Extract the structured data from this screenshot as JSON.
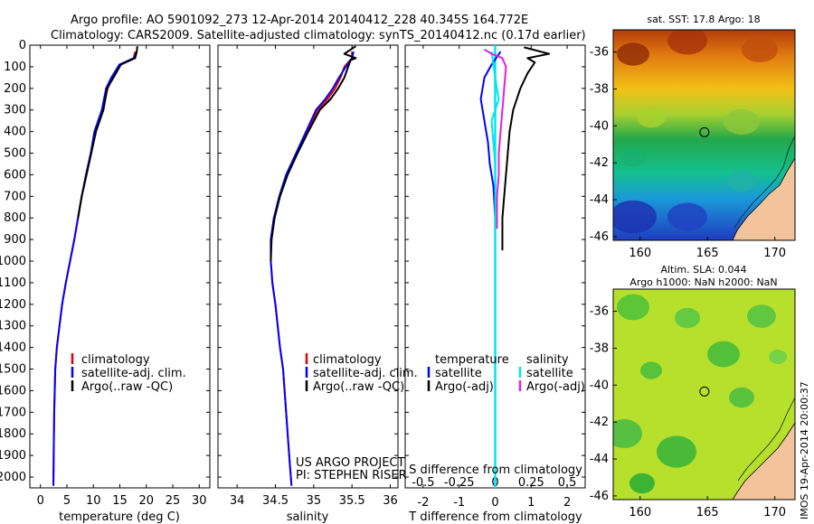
{
  "header": {
    "line1": "Argo profile: AO 5901092_273 12-Apr-2014 20140412_228 40.345S 164.772E",
    "line2": "Climatology: CARS2009. Satellite-adjusted climatology: synTS_20140412.nc (0.17d earlier)"
  },
  "colors": {
    "climatology": "#e00000",
    "satellite": "#0000ff",
    "argo": "#000000",
    "sal_satellite": "#00e5ee",
    "sal_argo": "#e020e0"
  },
  "chart_data": [
    {
      "id": "temperature",
      "type": "line",
      "xlabel": "temperature (deg C)",
      "ylabel": "",
      "xlim": [
        -2,
        32
      ],
      "ylim": [
        0,
        2050
      ],
      "y_reversed": true,
      "xticks": [
        0,
        5,
        10,
        15,
        20,
        25,
        30
      ],
      "yticks": [
        0,
        100,
        200,
        300,
        400,
        500,
        600,
        700,
        800,
        900,
        1000,
        1100,
        1200,
        1300,
        1400,
        1500,
        1600,
        1700,
        1800,
        1900,
        2000
      ],
      "legend": [
        "climatology",
        "satellite-adj. clim.",
        "Argo(..raw -QC)"
      ],
      "legend_placement": "lower-right",
      "series": [
        {
          "name": "climatology",
          "color": "#e00000",
          "x": [
            17.9,
            17.6,
            15,
            13.6,
            12.7,
            11.8,
            10.4,
            9.6,
            8.7,
            7.8,
            7.1,
            6.4,
            5.6,
            4.8,
            4.1,
            3.6,
            3.1,
            2.8,
            2.6,
            2.5,
            2.45
          ],
          "y": [
            30,
            60,
            90,
            150,
            200,
            300,
            400,
            500,
            600,
            700,
            800,
            900,
            1000,
            1100,
            1200,
            1300,
            1400,
            1500,
            1700,
            1900,
            2040
          ]
        },
        {
          "name": "satellite-adj. clim.",
          "color": "#0000ff",
          "x": [
            18.2,
            17.7,
            14.9,
            13.4,
            12.4,
            11.6,
            10.2,
            9.5,
            8.6,
            7.8,
            7.1,
            6.4,
            5.6,
            4.8,
            4.1,
            3.6,
            3.1,
            2.8,
            2.6,
            2.5,
            2.45
          ],
          "y": [
            30,
            60,
            90,
            150,
            200,
            300,
            400,
            500,
            600,
            700,
            800,
            900,
            1000,
            1100,
            1200,
            1300,
            1400,
            1500,
            1700,
            1900,
            2040
          ]
        },
        {
          "name": "Argo(..raw -QC)",
          "color": "#000000",
          "x": [
            18.3,
            18.2,
            17.9,
            15.2,
            13.8,
            12.6,
            11.9,
            10.5,
            9.6,
            8.7,
            7.8,
            7.1
          ],
          "y": [
            5,
            30,
            60,
            90,
            150,
            200,
            300,
            400,
            500,
            600,
            700,
            800
          ]
        }
      ]
    },
    {
      "id": "salinity",
      "type": "line",
      "xlabel": "salinity",
      "ylabel": "",
      "xlim": [
        33.75,
        36.1
      ],
      "ylim": [
        0,
        2050
      ],
      "y_reversed": true,
      "xticks": [
        34,
        34.5,
        35,
        35.5,
        36
      ],
      "legend": [
        "climatology",
        "satellite-adj. clim.",
        "Argo(..raw -QC)"
      ],
      "legend_placement": "lower-right",
      "annotation": [
        "US ARGO PROJECT",
        "PI: STEPHEN RISER"
      ],
      "series": [
        {
          "name": "climatology",
          "color": "#e00000",
          "x": [
            35.5,
            35.5,
            35.4,
            35.35,
            35.28,
            35.18,
            35.05,
            34.92,
            34.78,
            34.65,
            34.56,
            34.48,
            34.44,
            34.44,
            34.46,
            34.5,
            34.53,
            34.56,
            34.6,
            34.64,
            34.68,
            34.71
          ],
          "y": [
            30,
            60,
            100,
            150,
            200,
            250,
            300,
            400,
            500,
            600,
            700,
            800,
            900,
            1000,
            1100,
            1200,
            1300,
            1400,
            1500,
            1700,
            1900,
            2040
          ]
        },
        {
          "name": "satellite-adj. clim.",
          "color": "#0000ff",
          "x": [
            35.52,
            35.5,
            35.42,
            35.33,
            35.25,
            35.15,
            35.03,
            34.9,
            34.77,
            34.64,
            34.55,
            34.48,
            34.44,
            34.44,
            34.46,
            34.5,
            34.53,
            34.56,
            34.6,
            34.64,
            34.68,
            34.71
          ],
          "y": [
            30,
            60,
            100,
            150,
            200,
            250,
            300,
            400,
            500,
            600,
            700,
            800,
            900,
            1000,
            1100,
            1200,
            1300,
            1400,
            1500,
            1700,
            1900,
            2040
          ]
        },
        {
          "name": "Argo(..raw -QC)",
          "color": "#000000",
          "x": [
            35.55,
            35.4,
            35.55,
            35.48,
            35.45,
            35.4,
            35.32,
            35.22,
            35.08,
            34.93,
            34.79,
            34.66,
            34.56,
            34.49,
            34.45,
            34.44
          ],
          "y": [
            5,
            40,
            60,
            70,
            100,
            150,
            200,
            250,
            300,
            400,
            500,
            600,
            700,
            800,
            900,
            1000
          ]
        }
      ]
    },
    {
      "id": "differences",
      "type": "line",
      "xlabel": "T difference from climatology",
      "xlabel_top": "S difference from climatology",
      "xlim": [
        -2.5,
        2.5
      ],
      "ylim": [
        0,
        2050
      ],
      "y_reversed": true,
      "xticks": [
        -2,
        -1,
        0,
        1,
        2
      ],
      "s_ticks": [
        -0.5,
        -0.25,
        0,
        0.25,
        0.5
      ],
      "legend_groups": [
        {
          "title": "temperature",
          "items": [
            "satellite",
            "Argo(-adj)"
          ]
        },
        {
          "title": "salinity",
          "items": [
            "satellite",
            "Argo(-adj)"
          ]
        }
      ],
      "series": [
        {
          "name": "temperature satellite",
          "color": "#0000ff",
          "x": [
            0.15,
            -0.1,
            -0.3,
            -0.4,
            -0.3,
            -0.2,
            -0.15,
            -0.05,
            0,
            0,
            0
          ],
          "y": [
            30,
            90,
            150,
            250,
            350,
            450,
            550,
            650,
            800,
            1200,
            2040
          ]
        },
        {
          "name": "temperature Argo(-adj)",
          "color": "#000000",
          "x": [
            0.8,
            1.5,
            0.9,
            1.1,
            0.9,
            0.7,
            0.5,
            0.4,
            0.35,
            0.3,
            0.25,
            0.2,
            0.2
          ],
          "y": [
            10,
            40,
            60,
            80,
            130,
            200,
            300,
            400,
            500,
            600,
            700,
            800,
            950
          ]
        },
        {
          "name": "salinity satellite",
          "color": "#00e5ee",
          "x": [
            -0.1,
            -0.05,
            0,
            0.1,
            -0.1,
            -0.05,
            0,
            0,
            0,
            0
          ],
          "y": [
            30,
            90,
            150,
            250,
            350,
            450,
            550,
            700,
            1200,
            2040
          ]
        },
        {
          "name": "salinity Argo(-adj)",
          "color": "#e020e0",
          "x": [
            -0.3,
            -0.1,
            0.2,
            0.3,
            0.25,
            0.2,
            0.15,
            0.1,
            0.1,
            0.05,
            0.05
          ],
          "y": [
            20,
            40,
            60,
            100,
            200,
            300,
            400,
            500,
            600,
            700,
            850
          ]
        }
      ]
    },
    {
      "id": "sst-map",
      "type": "heatmap",
      "title": "sat. SST: 17.8 Argo: 18",
      "xticks": [
        160,
        165,
        170
      ],
      "yticks": [
        -36,
        -38,
        -40,
        -42,
        -44,
        -46
      ],
      "xlim": [
        158,
        171.5
      ],
      "ylim": [
        -46.2,
        -34.8
      ],
      "argo_position": {
        "lon": 164.772,
        "lat": -40.345
      }
    },
    {
      "id": "sla-map",
      "type": "heatmap",
      "title": "Altim. SLA: 0.044",
      "subtitle": "Argo h1000: NaN h2000: NaN",
      "xticks": [
        160,
        165,
        170
      ],
      "yticks": [
        -36,
        -38,
        -40,
        -42,
        -44,
        -46
      ],
      "xlim": [
        158,
        171.5
      ],
      "ylim": [
        -46.2,
        -34.8
      ],
      "argo_position": {
        "lon": 164.772,
        "lat": -40.345
      }
    }
  ],
  "credit": "IMOS 19-Apr-2014 20:00:37"
}
